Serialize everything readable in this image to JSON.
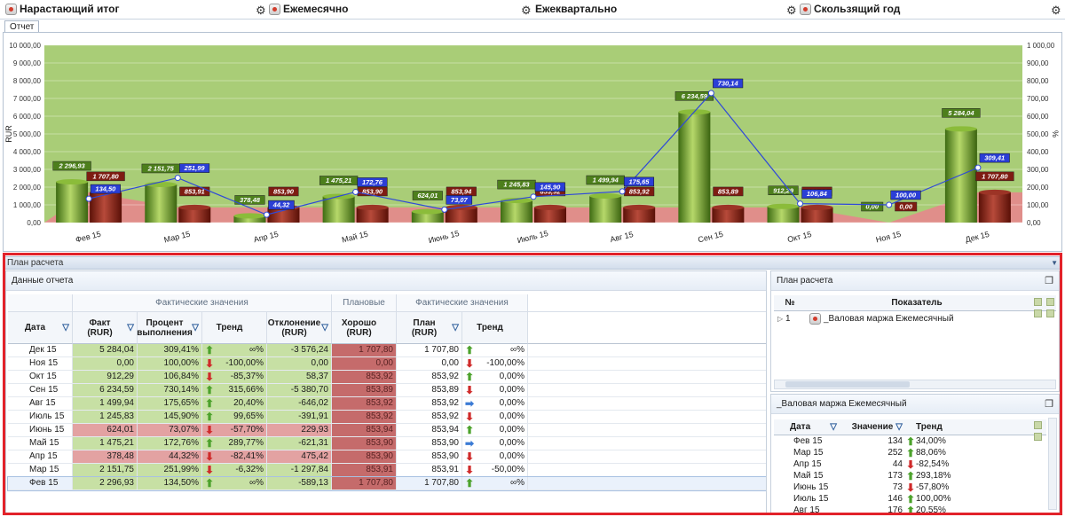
{
  "top_tabs": [
    {
      "label": "Нарастающий итог"
    },
    {
      "label": "Ежемесячно"
    },
    {
      "label": "Ежеквартально"
    },
    {
      "label": "Скользящий год"
    }
  ],
  "report_tab": "Отчет",
  "chart_data": {
    "type": "bar",
    "ylabel_left": "RUR",
    "ylabel_right": "%",
    "ylim_left": [
      0,
      10000
    ],
    "ylim_right": [
      0,
      1000
    ],
    "y_ticks_left": [
      "0,00",
      "1 000,00",
      "2 000,00",
      "3 000,00",
      "4 000,00",
      "5 000,00",
      "6 000,00",
      "7 000,00",
      "8 000,00",
      "9 000,00",
      "10 000,00"
    ],
    "y_ticks_right": [
      "0,00",
      "100,00",
      "200,00",
      "300,00",
      "400,00",
      "500,00",
      "600,00",
      "700,00",
      "800,00",
      "900,00",
      "1 000,00"
    ],
    "categories": [
      "Фев 15",
      "Мар 15",
      "Апр 15",
      "Май 15",
      "Июнь 15",
      "Июль 15",
      "Авг 15",
      "Сен 15",
      "Окт 15",
      "Ноя 15",
      "Дек 15"
    ],
    "series": [
      {
        "values": [
          2296.93,
          2151.75,
          378.48,
          1475.21,
          624.01,
          1245.83,
          1499.94,
          6234.59,
          912.29,
          0.0,
          5284.04
        ],
        "labels": [
          "2 296,93",
          "2 151,75",
          "378,48",
          "1 475,21",
          "624,01",
          "1 245,83",
          "1 499,94",
          "6 234,59",
          "912,29",
          "0,00",
          "5 284,04"
        ],
        "color": "#5f9326"
      },
      {
        "values": [
          1707.8,
          853.91,
          853.9,
          853.9,
          853.94,
          853.92,
          853.92,
          853.89,
          853.92,
          0.0,
          1707.8
        ],
        "labels": [
          "1 707,80",
          "853,91",
          "853,90",
          "853,90",
          "853,94",
          "853,92",
          "853,92",
          "853,89",
          "853,92",
          "0,00",
          "1 707,80"
        ],
        "color": "#8a1e12"
      },
      {
        "values": [
          134.5,
          251.99,
          44.32,
          172.76,
          73.07,
          145.9,
          175.65,
          730.14,
          106.84,
          100.0,
          309.41
        ],
        "labels": [
          "134,50",
          "251,99",
          "44,32",
          "172,76",
          "73,07",
          "145,90",
          "175,65",
          "730,14",
          "106,84",
          "100,00",
          "309,41"
        ],
        "color": "#2f49d8"
      }
    ],
    "colors": {
      "good_zone": "#a9cd77",
      "bad_zone": "#e08e8a"
    }
  },
  "plan_section": {
    "title": "План расчета"
  },
  "report_data": {
    "title": "Данные отчета",
    "group_fact": "Фактические значения",
    "group_plan": "Плановые значе",
    "group_fact2": "Фактические значения",
    "headers": [
      "Дата",
      "Факт (RUR)",
      "Процент выполнения",
      "Тренд",
      "Отклонение (RUR)",
      "Хорошо (RUR)",
      "План (RUR)",
      "Тренд"
    ],
    "rows": [
      {
        "date": "Дек 15",
        "fact": "5 284,04",
        "pct": "309,41%",
        "t1": "up",
        "t1v": "∞%",
        "dev": "-3 576,24",
        "good": "1 707,80",
        "plan": "1 707,80",
        "t2": "up",
        "t2v": "∞%",
        "fc": "g"
      },
      {
        "date": "Ноя 15",
        "fact": "0,00",
        "pct": "100,00%",
        "t1": "down",
        "t1v": "-100,00%",
        "dev": "0,00",
        "good": "0,00",
        "plan": "0,00",
        "t2": "down",
        "t2v": "-100,00%",
        "fc": "g"
      },
      {
        "date": "Окт 15",
        "fact": "912,29",
        "pct": "106,84%",
        "t1": "down",
        "t1v": "-85,37%",
        "dev": "58,37",
        "good": "853,92",
        "plan": "853,92",
        "t2": "up",
        "t2v": "0,00%",
        "fc": "g"
      },
      {
        "date": "Сен 15",
        "fact": "6 234,59",
        "pct": "730,14%",
        "t1": "up",
        "t1v": "315,66%",
        "dev": "-5 380,70",
        "good": "853,89",
        "plan": "853,89",
        "t2": "down",
        "t2v": "0,00%",
        "fc": "g"
      },
      {
        "date": "Авг 15",
        "fact": "1 499,94",
        "pct": "175,65%",
        "t1": "up",
        "t1v": "20,40%",
        "dev": "-646,02",
        "good": "853,92",
        "plan": "853,92",
        "t2": "right",
        "t2v": "0,00%",
        "fc": "g"
      },
      {
        "date": "Июль 15",
        "fact": "1 245,83",
        "pct": "145,90%",
        "t1": "up",
        "t1v": "99,65%",
        "dev": "-391,91",
        "good": "853,92",
        "plan": "853,92",
        "t2": "down",
        "t2v": "0,00%",
        "fc": "g"
      },
      {
        "date": "Июнь 15",
        "fact": "624,01",
        "pct": "73,07%",
        "t1": "down",
        "t1v": "-57,70%",
        "dev": "229,93",
        "good": "853,94",
        "plan": "853,94",
        "t2": "up",
        "t2v": "0,00%",
        "fc": "r"
      },
      {
        "date": "Май 15",
        "fact": "1 475,21",
        "pct": "172,76%",
        "t1": "up",
        "t1v": "289,77%",
        "dev": "-621,31",
        "good": "853,90",
        "plan": "853,90",
        "t2": "right",
        "t2v": "0,00%",
        "fc": "g"
      },
      {
        "date": "Апр 15",
        "fact": "378,48",
        "pct": "44,32%",
        "t1": "down",
        "t1v": "-82,41%",
        "dev": "475,42",
        "good": "853,90",
        "plan": "853,90",
        "t2": "down",
        "t2v": "0,00%",
        "fc": "r"
      },
      {
        "date": "Мар 15",
        "fact": "2 151,75",
        "pct": "251,99%",
        "t1": "down",
        "t1v": "-6,32%",
        "dev": "-1 297,84",
        "good": "853,91",
        "plan": "853,91",
        "t2": "down",
        "t2v": "-50,00%",
        "fc": "g"
      },
      {
        "date": "Фев 15",
        "fact": "2 296,93",
        "pct": "134,50%",
        "t1": "up",
        "t1v": "∞%",
        "dev": "-589,13",
        "good": "1 707,80",
        "plan": "1 707,80",
        "t2": "up",
        "t2v": "∞%",
        "fc": "g"
      }
    ]
  },
  "plan_panel": {
    "title": "План расчета",
    "headers": [
      "№",
      "Показатель"
    ],
    "rows": [
      {
        "num": "1",
        "name": "_Валовая маржа Ежемесячный"
      }
    ]
  },
  "metric_panel": {
    "title": "_Валовая маржа Ежемесячный",
    "headers": [
      "Дата",
      "Значение",
      "Тренд"
    ],
    "rows": [
      {
        "date": "Фев 15",
        "value": "134",
        "trend": "up",
        "tv": "34,00%"
      },
      {
        "date": "Мар 15",
        "value": "252",
        "trend": "up",
        "tv": "88,06%"
      },
      {
        "date": "Апр 15",
        "value": "44",
        "trend": "down",
        "tv": "-82,54%"
      },
      {
        "date": "Май 15",
        "value": "173",
        "trend": "up",
        "tv": "293,18%"
      },
      {
        "date": "Июнь 15",
        "value": "73",
        "trend": "down",
        "tv": "-57,80%"
      },
      {
        "date": "Июль 15",
        "value": "146",
        "trend": "up",
        "tv": "100,00%"
      },
      {
        "date": "Авг 15",
        "value": "176",
        "trend": "up",
        "tv": "20,55%"
      }
    ]
  }
}
